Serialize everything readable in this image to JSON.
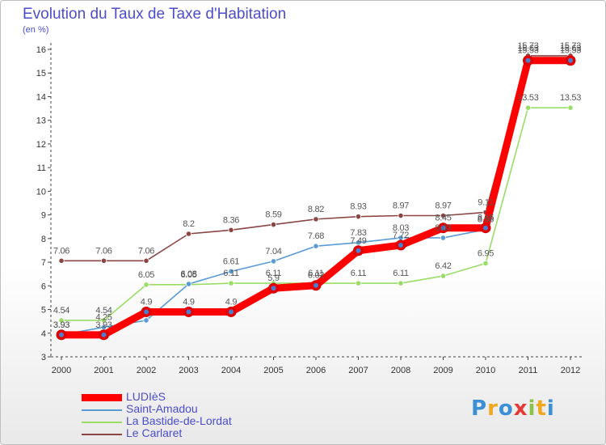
{
  "title": "Evolution du Taux de Taxe d'Habitation",
  "unit_label": "(en %)",
  "logo": {
    "text": "Proxiti",
    "letters": [
      {
        "ch": "P",
        "color": "#3b8fd6"
      },
      {
        "ch": "r",
        "color": "#f0a820"
      },
      {
        "ch": "o",
        "color": "#3b8fd6"
      },
      {
        "ch": "x",
        "color": "#e53935"
      },
      {
        "ch": "i",
        "color": "#8bc34a"
      },
      {
        "ch": "t",
        "color": "#f0a820"
      },
      {
        "ch": "i",
        "color": "#3b8fd6"
      }
    ]
  },
  "chart_data": {
    "type": "line",
    "title": "Evolution du Taux de Taxe d'Habitation",
    "ylabel": "(en %)",
    "xlabel": "",
    "x": [
      "2000",
      "2001",
      "2002",
      "2003",
      "2004",
      "2005",
      "2006",
      "2007",
      "2008",
      "2009",
      "2010",
      "2011",
      "2012"
    ],
    "ylim": [
      3,
      16
    ],
    "yticks": [
      3,
      4,
      5,
      6,
      7,
      8,
      9,
      10,
      11,
      12,
      13,
      14,
      15,
      16
    ],
    "grid": false,
    "legend_position": "bottom-left",
    "series": [
      {
        "name": "LUDIèS",
        "color": "#ff0000",
        "width": "thick",
        "values": [
          3.93,
          3.93,
          4.9,
          4.9,
          4.9,
          5.9,
          6.02,
          7.49,
          7.72,
          8.45,
          8.45,
          15.53,
          15.53
        ],
        "labels": [
          "3.93",
          "3.93",
          "4.9",
          "4.9",
          "4.9",
          "5.9",
          "6.02",
          "7.49",
          "7.72",
          "8.45",
          "8.45",
          "15.53",
          "15.53"
        ]
      },
      {
        "name": "Saint-Amadou",
        "color": "#5b9bd5",
        "width": "thin",
        "values": [
          3.93,
          4.25,
          4.54,
          6.08,
          6.61,
          7.04,
          7.68,
          7.83,
          8.03,
          8.03,
          8.38,
          15.63,
          15.63
        ],
        "labels": [
          "3.93",
          "4.25",
          "",
          "6.08",
          "6.61",
          "7.04",
          "7.68",
          "7.83",
          "8.03",
          "8.03",
          "8.38",
          "15.63",
          "15.63"
        ]
      },
      {
        "name": "La Bastide-de-Lordat",
        "color": "#99dd66",
        "width": "thin",
        "values": [
          4.54,
          4.54,
          6.05,
          6.05,
          6.11,
          6.11,
          6.11,
          6.11,
          6.11,
          6.42,
          6.95,
          13.53,
          13.53
        ],
        "labels": [
          "4.54",
          "4.54",
          "6.05",
          "6.05",
          "6.11",
          "6.11",
          "6.11",
          "6.11",
          "6.11",
          "6.42",
          "6.95",
          "13.53",
          "13.53"
        ]
      },
      {
        "name": "Le Carlaret",
        "color": "#8b4545",
        "width": "thin",
        "values": [
          7.06,
          7.06,
          7.06,
          8.2,
          8.36,
          8.59,
          8.82,
          8.93,
          8.97,
          8.97,
          9.11,
          15.73,
          15.73
        ],
        "labels": [
          "7.06",
          "7.06",
          "7.06",
          "8.2",
          "8.36",
          "8.59",
          "8.82",
          "8.93",
          "8.97",
          "8.97",
          "9.11",
          "15.73",
          "15.73"
        ]
      }
    ]
  }
}
